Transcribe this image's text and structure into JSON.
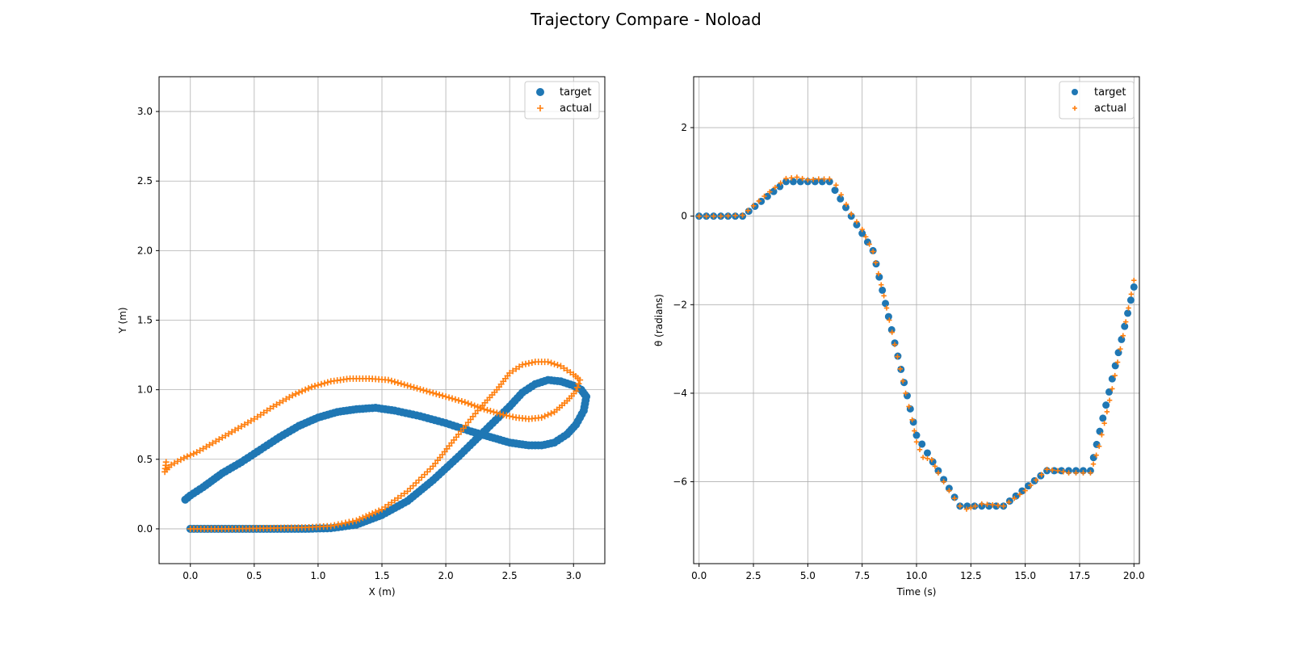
{
  "figure": {
    "title": "Trajectory Compare - Noload"
  },
  "colors": {
    "target": "#1f77b4",
    "actual": "#ff7f0e",
    "grid": "#b0b0b0",
    "axes": "#000000"
  },
  "chart_data": [
    {
      "type": "scatter",
      "xlabel": "X (m)",
      "ylabel": "Y (m)",
      "xlim": [
        -0.245,
        3.245
      ],
      "ylim": [
        -0.25,
        3.25
      ],
      "xticks": [
        0.0,
        0.5,
        1.0,
        1.5,
        2.0,
        2.5,
        3.0
      ],
      "xtick_labels": [
        "0.0",
        "0.5",
        "1.0",
        "1.5",
        "2.0",
        "2.5",
        "3.0"
      ],
      "yticks": [
        0.0,
        0.5,
        1.0,
        1.5,
        2.0,
        2.5,
        3.0
      ],
      "ytick_labels": [
        "0.0",
        "0.5",
        "1.0",
        "1.5",
        "2.0",
        "2.5",
        "3.0"
      ],
      "grid": true,
      "legend_position": "top-right",
      "series": [
        {
          "name": "target",
          "marker": "circle",
          "points": [
            [
              0.0,
              0.0
            ],
            [
              0.3,
              0.0
            ],
            [
              0.6,
              0.0
            ],
            [
              0.9,
              0.0
            ],
            [
              1.1,
              0.005
            ],
            [
              1.3,
              0.03
            ],
            [
              1.5,
              0.1
            ],
            [
              1.7,
              0.2
            ],
            [
              1.9,
              0.35
            ],
            [
              2.1,
              0.52
            ],
            [
              2.3,
              0.7
            ],
            [
              2.5,
              0.88
            ],
            [
              2.6,
              0.98
            ],
            [
              2.7,
              1.04
            ],
            [
              2.8,
              1.07
            ],
            [
              2.9,
              1.06
            ],
            [
              3.0,
              1.03
            ],
            [
              3.06,
              1.0
            ],
            [
              3.1,
              0.95
            ],
            [
              3.08,
              0.85
            ],
            [
              3.02,
              0.75
            ],
            [
              2.95,
              0.68
            ],
            [
              2.85,
              0.62
            ],
            [
              2.75,
              0.6
            ],
            [
              2.65,
              0.6
            ],
            [
              2.5,
              0.62
            ],
            [
              2.35,
              0.66
            ],
            [
              2.2,
              0.7
            ],
            [
              2.0,
              0.76
            ],
            [
              1.8,
              0.81
            ],
            [
              1.6,
              0.85
            ],
            [
              1.45,
              0.87
            ],
            [
              1.3,
              0.86
            ],
            [
              1.15,
              0.84
            ],
            [
              1.0,
              0.8
            ],
            [
              0.85,
              0.74
            ],
            [
              0.7,
              0.66
            ],
            [
              0.55,
              0.57
            ],
            [
              0.4,
              0.48
            ],
            [
              0.25,
              0.4
            ],
            [
              0.1,
              0.3
            ],
            [
              0.0,
              0.24
            ],
            [
              -0.04,
              0.21
            ]
          ]
        },
        {
          "name": "actual",
          "marker": "plus",
          "points": [
            [
              0.0,
              0.0
            ],
            [
              0.3,
              0.0
            ],
            [
              0.6,
              0.005
            ],
            [
              0.9,
              0.01
            ],
            [
              1.1,
              0.02
            ],
            [
              1.3,
              0.06
            ],
            [
              1.5,
              0.14
            ],
            [
              1.7,
              0.27
            ],
            [
              1.9,
              0.45
            ],
            [
              2.1,
              0.68
            ],
            [
              2.25,
              0.85
            ],
            [
              2.4,
              1.0
            ],
            [
              2.5,
              1.12
            ],
            [
              2.6,
              1.18
            ],
            [
              2.7,
              1.2
            ],
            [
              2.8,
              1.2
            ],
            [
              2.9,
              1.17
            ],
            [
              3.0,
              1.11
            ],
            [
              3.05,
              1.07
            ],
            [
              3.02,
              0.99
            ],
            [
              2.95,
              0.92
            ],
            [
              2.85,
              0.84
            ],
            [
              2.75,
              0.8
            ],
            [
              2.65,
              0.79
            ],
            [
              2.55,
              0.8
            ],
            [
              2.45,
              0.82
            ],
            [
              2.3,
              0.86
            ],
            [
              2.15,
              0.91
            ],
            [
              2.0,
              0.95
            ],
            [
              1.85,
              0.99
            ],
            [
              1.7,
              1.03
            ],
            [
              1.55,
              1.07
            ],
            [
              1.4,
              1.08
            ],
            [
              1.25,
              1.08
            ],
            [
              1.1,
              1.06
            ],
            [
              0.95,
              1.02
            ],
            [
              0.8,
              0.96
            ],
            [
              0.65,
              0.88
            ],
            [
              0.5,
              0.79
            ],
            [
              0.35,
              0.71
            ],
            [
              0.2,
              0.63
            ],
            [
              0.05,
              0.55
            ],
            [
              -0.05,
              0.51
            ],
            [
              -0.15,
              0.46
            ],
            [
              -0.2,
              0.41
            ],
            [
              -0.19,
              0.48
            ]
          ]
        }
      ]
    },
    {
      "type": "scatter",
      "xlabel": "Time (s)",
      "ylabel": "θ (radians)",
      "xlim": [
        -0.25,
        20.25
      ],
      "ylim": [
        -7.85,
        3.15
      ],
      "xticks": [
        0.0,
        2.5,
        5.0,
        7.5,
        10.0,
        12.5,
        15.0,
        17.5,
        20.0
      ],
      "xtick_labels": [
        "0.0",
        "2.5",
        "5.0",
        "7.5",
        "10.0",
        "12.5",
        "15.0",
        "17.5",
        "20.0"
      ],
      "yticks": [
        2,
        0,
        -2,
        -4,
        -6
      ],
      "ytick_labels": [
        "2",
        "0",
        "−2",
        "−4",
        "−6"
      ],
      "grid": true,
      "legend_position": "top-right",
      "series": [
        {
          "name": "target",
          "marker": "circle",
          "points": [
            [
              0.0,
              0.0
            ],
            [
              2.0,
              0.0
            ],
            [
              4.0,
              0.78
            ],
            [
              6.0,
              0.78
            ],
            [
              8.0,
              -0.78
            ],
            [
              10.0,
              -4.95
            ],
            [
              12.0,
              -6.55
            ],
            [
              14.0,
              -6.55
            ],
            [
              16.0,
              -5.75
            ],
            [
              18.0,
              -5.75
            ],
            [
              20.0,
              -1.6
            ]
          ]
        },
        {
          "name": "actual",
          "marker": "plus",
          "points": [
            [
              0.0,
              0.0
            ],
            [
              1.0,
              0.0
            ],
            [
              2.0,
              0.02
            ],
            [
              3.0,
              0.45
            ],
            [
              4.0,
              0.85
            ],
            [
              4.5,
              0.88
            ],
            [
              5.0,
              0.82
            ],
            [
              5.5,
              0.84
            ],
            [
              6.0,
              0.84
            ],
            [
              6.3,
              0.7
            ],
            [
              7.0,
              0.05
            ],
            [
              7.5,
              -0.3
            ],
            [
              8.0,
              -0.8
            ],
            [
              8.5,
              -1.8
            ],
            [
              9.0,
              -2.9
            ],
            [
              9.5,
              -4.0
            ],
            [
              9.8,
              -4.6
            ],
            [
              10.0,
              -5.1
            ],
            [
              10.3,
              -5.45
            ],
            [
              10.7,
              -5.5
            ],
            [
              11.0,
              -5.8
            ],
            [
              11.5,
              -6.2
            ],
            [
              12.0,
              -6.55
            ],
            [
              12.3,
              -6.62
            ],
            [
              12.7,
              -6.55
            ],
            [
              13.0,
              -6.5
            ],
            [
              13.5,
              -6.52
            ],
            [
              14.0,
              -6.55
            ],
            [
              15.0,
              -6.2
            ],
            [
              16.0,
              -5.72
            ],
            [
              16.5,
              -5.75
            ],
            [
              17.0,
              -5.8
            ],
            [
              18.0,
              -5.8
            ],
            [
              18.4,
              -5.2
            ],
            [
              19.0,
              -3.9
            ],
            [
              19.5,
              -2.7
            ],
            [
              20.0,
              -1.45
            ]
          ]
        }
      ]
    }
  ]
}
